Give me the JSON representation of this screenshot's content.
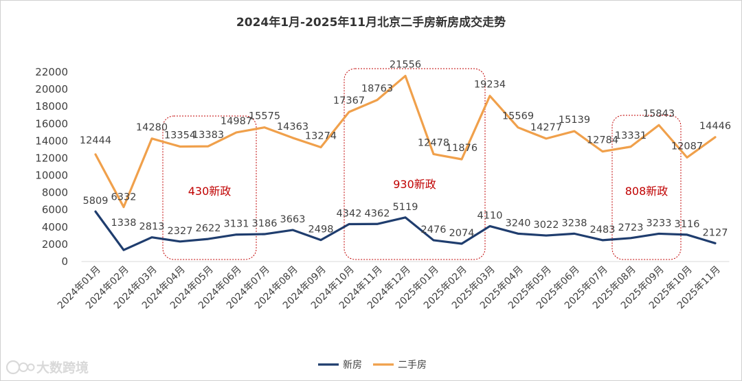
{
  "chart_data": {
    "type": "line",
    "title": "2024年1月-2025年11月北京二手房新房成交走势",
    "categories": [
      "2024年01月",
      "2024年02月",
      "2024年03月",
      "2024年04月",
      "2024年05月",
      "2024年06月",
      "2024年07月",
      "2024年08月",
      "2024年09月",
      "2024年10月",
      "2024年11月",
      "2024年12月",
      "2025年01月",
      "2025年02月",
      "2025年03月",
      "2025年04月",
      "2025年05月",
      "2025年06月",
      "2025年07月",
      "2025年08月",
      "2025年09月",
      "2025年10月",
      "2025年11月"
    ],
    "series": [
      {
        "name": "新房",
        "color": "#1f3d6e",
        "values": [
          5809,
          1338,
          2813,
          2327,
          2622,
          3131,
          3186,
          3663,
          2498,
          4342,
          4362,
          5119,
          2476,
          2074,
          4110,
          3240,
          3022,
          3238,
          2483,
          2723,
          3233,
          3116,
          2127
        ]
      },
      {
        "name": "二手房",
        "color": "#f0a04b",
        "values": [
          12444,
          6332,
          14280,
          13354,
          13383,
          14987,
          15575,
          14363,
          13274,
          17367,
          18763,
          21556,
          12478,
          11876,
          19234,
          15569,
          14277,
          15139,
          12784,
          13331,
          15843,
          12087,
          14446
        ]
      }
    ],
    "ylim": [
      0,
      22000
    ],
    "yticks": [
      0,
      2000,
      4000,
      6000,
      8000,
      10000,
      12000,
      14000,
      16000,
      18000,
      20000,
      22000
    ],
    "grid": false,
    "legend_position": "bottom-center",
    "annotations": [
      {
        "text": "430新政",
        "from_category": "2024年04月",
        "to_category": "2024年06月",
        "color": "#c00000"
      },
      {
        "text": "930新政",
        "from_category": "2024年10月",
        "to_category": "2025年02月",
        "color": "#c00000"
      },
      {
        "text": "808新政",
        "from_category": "2025年08月",
        "to_category": "2025年09月",
        "color": "#c00000"
      }
    ]
  },
  "watermark": "大数跨境"
}
